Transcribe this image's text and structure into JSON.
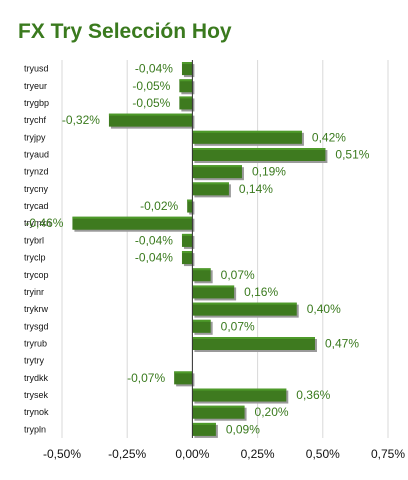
{
  "title": "FX Try Selección Hoy",
  "chart_data": {
    "type": "bar",
    "orientation": "horizontal",
    "categories": [
      "tryusd",
      "tryeur",
      "trygbp",
      "trychf",
      "tryjpy",
      "tryaud",
      "trynzd",
      "trycny",
      "trycad",
      "trymxn",
      "trybrl",
      "tryclp",
      "trycop",
      "tryinr",
      "trykrw",
      "trysgd",
      "tryrub",
      "trytry",
      "trydkk",
      "trysek",
      "trynok",
      "trypln"
    ],
    "values": [
      -0.04,
      -0.05,
      -0.05,
      -0.32,
      0.42,
      0.51,
      0.19,
      0.14,
      -0.02,
      -0.46,
      -0.04,
      -0.04,
      0.07,
      0.16,
      0.4,
      0.07,
      0.47,
      null,
      -0.07,
      0.36,
      0.2,
      0.09
    ],
    "data_labels": [
      "-0,04%",
      "-0,05%",
      "-0,05%",
      "-0,32%",
      "0,42%",
      "0,51%",
      "0,19%",
      "0,14%",
      "-0,02%",
      "-0,46%",
      "-0,04%",
      "-0,04%",
      "0,07%",
      "0,16%",
      "0,40%",
      "0,07%",
      "0,47%",
      "",
      "-0,07%",
      "0,36%",
      "0,20%",
      "0,09%"
    ],
    "xlim": [
      -0.5,
      0.75
    ],
    "x_ticks": [
      -0.5,
      -0.25,
      0,
      0.25,
      0.5,
      0.75
    ],
    "x_tick_labels": [
      "-0,50%",
      "-0,25%",
      "0,00%",
      "0,25%",
      "0,50%",
      "0,75%"
    ],
    "grid": true,
    "colors": {
      "bar": "#3e7a1f",
      "bar_highlight": "#4e9a2a",
      "bar_shadow": "#9a9a9a",
      "label": "#3a7a1e",
      "grid": "#d8d8d8"
    }
  }
}
